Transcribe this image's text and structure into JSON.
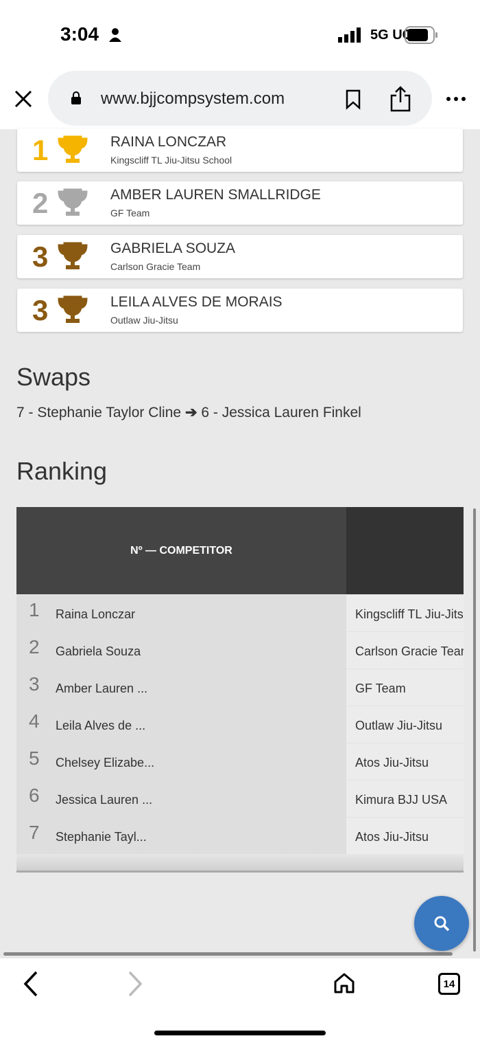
{
  "status_bar": {
    "time": "3:04",
    "network": "5G UC"
  },
  "browser": {
    "url": "www.bjjcompsystem.com",
    "tab_count": "14"
  },
  "podium": [
    {
      "place": "1",
      "name": "RAINA LONCZAR",
      "team": "Kingscliff TL Jiu-Jitsu School",
      "color": "#f4b400"
    },
    {
      "place": "2",
      "name": "AMBER LAUREN SMALLRIDGE",
      "team": "GF Team",
      "color": "#a8a8a8"
    },
    {
      "place": "3",
      "name": "GABRIELA SOUZA",
      "team": "Carlson Gracie Team",
      "color": "#8a5a12"
    },
    {
      "place": "3",
      "name": "LEILA ALVES DE MORAIS",
      "team": "Outlaw Jiu-Jitsu",
      "color": "#8a5a12"
    }
  ],
  "swaps": {
    "title": "Swaps",
    "from": "7 - Stephanie Taylor Cline",
    "to": "6 - Jessica Lauren Finkel"
  },
  "ranking": {
    "title": "Ranking",
    "header": "Nº — COMPETITOR",
    "rows": [
      {
        "n": "1",
        "name": "Raina Lonczar",
        "team": "Kingscliff TL Jiu-Jitsu School"
      },
      {
        "n": "2",
        "name": "Gabriela Souza",
        "team": "Carlson Gracie Team"
      },
      {
        "n": "3",
        "name": "Amber Lauren ...",
        "team": "GF Team"
      },
      {
        "n": "4",
        "name": "Leila Alves de ...",
        "team": "Outlaw Jiu-Jitsu"
      },
      {
        "n": "5",
        "name": "Chelsey Elizabe...",
        "team": "Atos Jiu-Jitsu"
      },
      {
        "n": "6",
        "name": "Jessica Lauren ...",
        "team": "Kimura BJJ USA"
      },
      {
        "n": "7",
        "name": "Stephanie Tayl...",
        "team": "Atos Jiu-Jitsu"
      }
    ]
  },
  "colors": {
    "fab": "#3a78c0",
    "header": "#444444"
  }
}
